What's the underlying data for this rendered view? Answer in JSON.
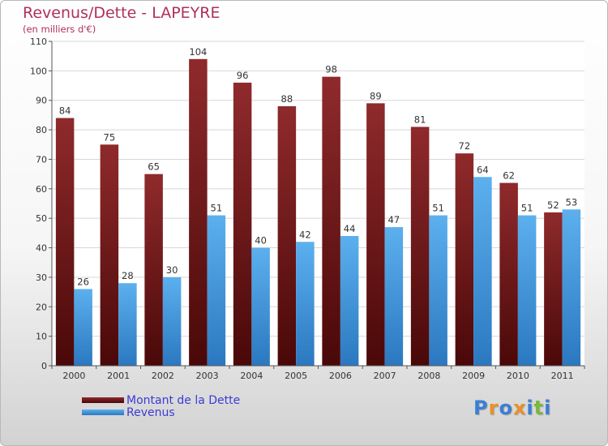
{
  "chart_data": {
    "type": "bar",
    "title": "Revenus/Dette - LAPEYRE",
    "subtitle": "(en milliers d'€)",
    "categories": [
      "2000",
      "2001",
      "2002",
      "2003",
      "2004",
      "2005",
      "2006",
      "2007",
      "2008",
      "2009",
      "2010",
      "2011"
    ],
    "series": [
      {
        "name": "Montant de la Dette",
        "color": "#7a1518",
        "values": [
          84,
          75,
          65,
          104,
          96,
          88,
          98,
          89,
          81,
          72,
          62,
          52
        ]
      },
      {
        "name": "Revenus",
        "color": "#4a9fe0",
        "values": [
          26,
          28,
          30,
          51,
          40,
          42,
          44,
          47,
          51,
          64,
          51,
          53
        ]
      }
    ],
    "ylim": [
      0,
      110
    ],
    "yticks": [
      0,
      10,
      20,
      30,
      40,
      50,
      60,
      70,
      80,
      90,
      100,
      110
    ],
    "grid": true,
    "legend_position": "bottom-left"
  },
  "logo": {
    "letters": [
      "P",
      "r",
      "o",
      "x",
      "i",
      "t",
      "i"
    ],
    "colors": [
      "#3a7fd5",
      "#e8902a",
      "#3a7fd5",
      "#e8902a",
      "#3a7fd5",
      "#7ab93a",
      "#3a7fd5"
    ]
  }
}
